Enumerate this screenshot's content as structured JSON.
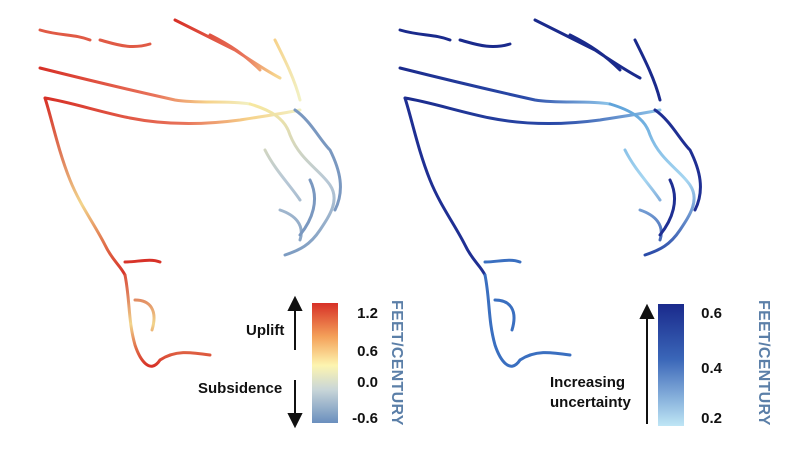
{
  "left_panel": {
    "legend": {
      "uplift_label": "Uplift",
      "subsidence_label": "Subsidence",
      "ticks": [
        "1.2",
        "0.6",
        "0.0",
        "-0.6"
      ],
      "unit": "FEET/CENTURY",
      "colors": [
        "#d73027",
        "#f4a15a",
        "#fdf5b0",
        "#c9d6d8",
        "#6a8fbe"
      ]
    }
  },
  "right_panel": {
    "legend": {
      "uncertainty_label_line1": "Increasing",
      "uncertainty_label_line2": "uncertainty",
      "ticks": [
        "0.6",
        "0.4",
        "0.2"
      ],
      "unit": "FEET/CENTURY",
      "colors": [
        "#1a2a8c",
        "#3a66b8",
        "#bfe6f5"
      ]
    }
  }
}
